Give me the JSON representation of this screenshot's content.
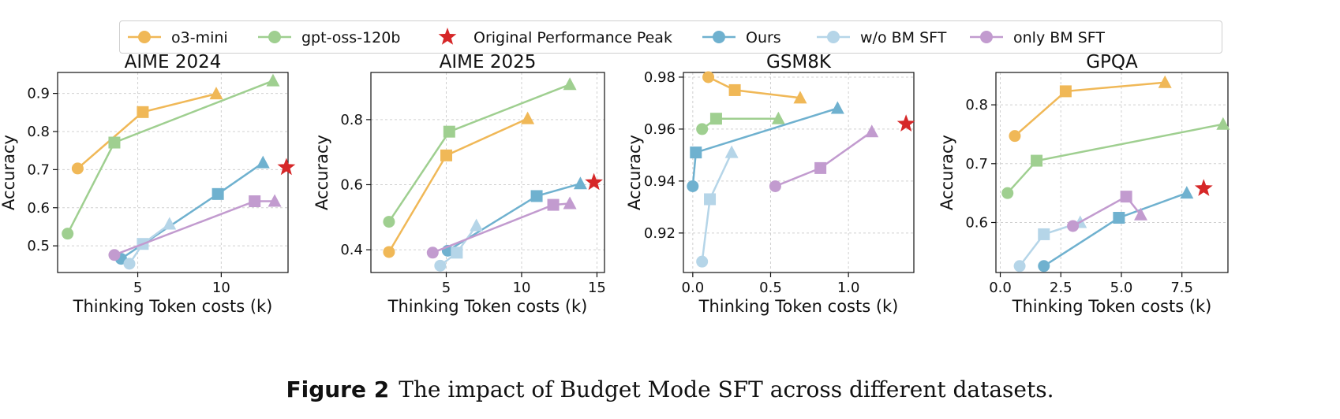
{
  "legend": [
    {
      "label": "o3-mini",
      "color": "#f0b857",
      "kind": "line-circle"
    },
    {
      "label": "gpt-oss-120b",
      "color": "#9fcf90",
      "kind": "line-circle"
    },
    {
      "label": "Original Performance Peak",
      "color": "#d62728",
      "kind": "star"
    },
    {
      "label": "Ours",
      "color": "#6fb1cf",
      "kind": "line-circle"
    },
    {
      "label": "w/o BM SFT",
      "color": "#b5d5e8",
      "kind": "line-circle"
    },
    {
      "label": "only BM SFT",
      "color": "#c29bcf",
      "kind": "line-circle"
    }
  ],
  "chart_data": [
    {
      "type": "line",
      "title": "AIME 2024",
      "xlabel": "Thinking Token costs (k)",
      "ylabel": "Accuracy",
      "xlim": [
        0.2,
        14.0
      ],
      "ylim": [
        0.43,
        0.955
      ],
      "xticks": [
        5,
        10
      ],
      "xtick_labels": [
        "5",
        "10"
      ],
      "yticks": [
        0.5,
        0.6,
        0.7,
        0.8,
        0.9
      ],
      "ytick_labels": [
        "0.5",
        "0.6",
        "0.7",
        "0.8",
        "0.9"
      ],
      "grid": true,
      "series": [
        {
          "name": "o3-mini",
          "color": "#f0b857",
          "x": [
            1.4,
            5.3,
            9.7
          ],
          "y": [
            0.703,
            0.851,
            0.899
          ]
        },
        {
          "name": "gpt-oss-120b",
          "color": "#9fcf90",
          "x": [
            0.8,
            3.6,
            13.1
          ],
          "y": [
            0.532,
            0.771,
            0.933
          ]
        },
        {
          "name": "Ours",
          "color": "#6fb1cf",
          "x": [
            4.0,
            9.8,
            12.5
          ],
          "y": [
            0.466,
            0.636,
            0.718
          ]
        },
        {
          "name": "w/o BM SFT",
          "color": "#b5d5e8",
          "x": [
            4.5,
            5.3,
            6.9
          ],
          "y": [
            0.453,
            0.505,
            0.557
          ]
        },
        {
          "name": "only BM SFT",
          "color": "#c29bcf",
          "x": [
            3.6,
            12.0,
            13.2
          ],
          "y": [
            0.476,
            0.617,
            0.617
          ]
        }
      ],
      "peak": {
        "label": "Original Performance Peak",
        "x": 13.9,
        "y": 0.706
      }
    },
    {
      "type": "line",
      "title": "AIME 2025",
      "xlabel": "Thinking Token costs (k)",
      "ylabel": "Accuracy",
      "xlim": [
        0.0,
        15.5
      ],
      "ylim": [
        0.33,
        0.945
      ],
      "xticks": [
        5,
        10,
        15
      ],
      "xtick_labels": [
        "5",
        "10",
        "15"
      ],
      "yticks": [
        0.4,
        0.6,
        0.8
      ],
      "ytick_labels": [
        "0.4",
        "0.6",
        "0.8"
      ],
      "grid": true,
      "series": [
        {
          "name": "o3-mini",
          "color": "#f0b857",
          "x": [
            1.2,
            5.0,
            10.4
          ],
          "y": [
            0.393,
            0.69,
            0.803
          ]
        },
        {
          "name": "gpt-oss-120b",
          "color": "#9fcf90",
          "x": [
            1.2,
            5.2,
            13.2
          ],
          "y": [
            0.486,
            0.763,
            0.908
          ]
        },
        {
          "name": "Ours",
          "color": "#6fb1cf",
          "x": [
            5.1,
            11.0,
            13.9
          ],
          "y": [
            0.397,
            0.565,
            0.603
          ]
        },
        {
          "name": "w/o BM SFT",
          "color": "#b5d5e8",
          "x": [
            4.6,
            5.7,
            7.0
          ],
          "y": [
            0.351,
            0.391,
            0.474
          ]
        },
        {
          "name": "only BM SFT",
          "color": "#c29bcf",
          "x": [
            4.1,
            12.1,
            13.2
          ],
          "y": [
            0.391,
            0.538,
            0.542
          ]
        }
      ],
      "peak": {
        "label": "Original Performance Peak",
        "x": 14.8,
        "y": 0.607
      }
    },
    {
      "type": "line",
      "title": "GSM8K",
      "xlabel": "Thinking Token costs (k)",
      "ylabel": "Accuracy",
      "xlim": [
        -0.06,
        1.42
      ],
      "ylim": [
        0.9048,
        0.9818
      ],
      "xticks": [
        0.0,
        0.5,
        1.0
      ],
      "xtick_labels": [
        "0.0",
        "0.5",
        "1.0"
      ],
      "yticks": [
        0.92,
        0.94,
        0.96,
        0.98
      ],
      "ytick_labels": [
        "0.92",
        "0.94",
        "0.96",
        "0.98"
      ],
      "grid": true,
      "series": [
        {
          "name": "o3-mini",
          "color": "#f0b857",
          "x": [
            0.1,
            0.27,
            0.69
          ],
          "y": [
            0.98,
            0.975,
            0.972
          ]
        },
        {
          "name": "gpt-oss-120b",
          "color": "#9fcf90",
          "x": [
            0.06,
            0.15,
            0.55
          ],
          "y": [
            0.96,
            0.964,
            0.964
          ]
        },
        {
          "name": "Ours",
          "color": "#6fb1cf",
          "x": [
            0.0,
            0.02,
            0.93
          ],
          "y": [
            0.938,
            0.951,
            0.968
          ]
        },
        {
          "name": "w/o BM SFT",
          "color": "#b5d5e8",
          "x": [
            0.06,
            0.11,
            0.25
          ],
          "y": [
            0.909,
            0.933,
            0.951
          ]
        },
        {
          "name": "only BM SFT",
          "color": "#c29bcf",
          "x": [
            0.53,
            0.82,
            1.15
          ],
          "y": [
            0.938,
            0.945,
            0.959
          ]
        }
      ],
      "peak": {
        "label": "Original Performance Peak",
        "x": 1.37,
        "y": 0.962
      }
    },
    {
      "type": "line",
      "title": "GPQA",
      "xlabel": "Thinking Token costs (k)",
      "ylabel": "Accuracy",
      "xlim": [
        -0.18,
        9.4
      ],
      "ylim": [
        0.515,
        0.855
      ],
      "xticks": [
        0.0,
        2.5,
        5.0,
        7.5
      ],
      "xtick_labels": [
        "0.0",
        "2.5",
        "5.0",
        "7.5"
      ],
      "yticks": [
        0.6,
        0.7,
        0.8
      ],
      "ytick_labels": [
        "0.6",
        "0.7",
        "0.8"
      ],
      "grid": true,
      "series": [
        {
          "name": "o3-mini",
          "color": "#f0b857",
          "x": [
            0.6,
            2.7,
            6.8
          ],
          "y": [
            0.747,
            0.823,
            0.838
          ]
        },
        {
          "name": "gpt-oss-120b",
          "color": "#9fcf90",
          "x": [
            0.3,
            1.5,
            9.2
          ],
          "y": [
            0.65,
            0.705,
            0.767
          ]
        },
        {
          "name": "Ours",
          "color": "#6fb1cf",
          "x": [
            1.8,
            4.9,
            7.7
          ],
          "y": [
            0.526,
            0.608,
            0.65
          ]
        },
        {
          "name": "w/o BM SFT",
          "color": "#b5d5e8",
          "x": [
            0.8,
            1.8,
            3.3
          ],
          "y": [
            0.526,
            0.58,
            0.6
          ]
        },
        {
          "name": "only BM SFT",
          "color": "#c29bcf",
          "x": [
            3.0,
            5.2,
            5.8
          ],
          "y": [
            0.594,
            0.644,
            0.613
          ]
        }
      ],
      "peak": {
        "label": "Original Performance Peak",
        "x": 8.4,
        "y": 0.658
      }
    }
  ],
  "caption": {
    "label": "Figure 2",
    "text": "The impact of Budget Mode SFT across different datasets."
  }
}
